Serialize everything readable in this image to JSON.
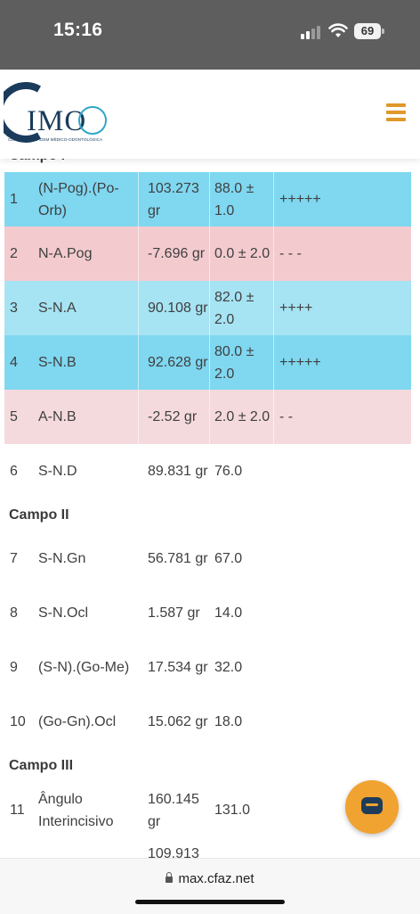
{
  "status_bar": {
    "time": "15:16",
    "battery": "69"
  },
  "brand": {
    "logo_text": "IMO",
    "tagline": "CLÍNICA DE IMAGEM MÉDICO-ODONTOLÓGICA",
    "accent": "#e0982a",
    "logo_color": "#1a3b5c"
  },
  "sections": {
    "campo_i": "Campo I",
    "campo_ii": "Campo II",
    "campo_iii": "Campo III"
  },
  "rows": [
    {
      "num": "1",
      "name": "(N-Pog).(Po-Orb)",
      "value": "103.273 gr",
      "norm": "88.0 ± 1.0",
      "dev": "+++++"
    },
    {
      "num": "2",
      "name": "N-A.Pog",
      "value": "-7.696 gr",
      "norm": "0.0 ± 2.0",
      "dev": "- - -"
    },
    {
      "num": "3",
      "name": "S-N.A",
      "value": "90.108 gr",
      "norm": "82.0 ± 2.0",
      "dev": "++++"
    },
    {
      "num": "4",
      "name": "S-N.B",
      "value": "92.628 gr",
      "norm": "80.0 ± 2.0",
      "dev": "+++++"
    },
    {
      "num": "5",
      "name": "A-N.B",
      "value": "-2.52 gr",
      "norm": "2.0 ± 2.0",
      "dev": "- -"
    },
    {
      "num": "6",
      "name": "S-N.D",
      "value": "89.831 gr",
      "norm": "76.0",
      "dev": ""
    },
    {
      "num": "7",
      "name": "S-N.Gn",
      "value": "56.781 gr",
      "norm": "67.0",
      "dev": ""
    },
    {
      "num": "8",
      "name": "S-N.Ocl",
      "value": "1.587 gr",
      "norm": "14.0",
      "dev": ""
    },
    {
      "num": "9",
      "name": "(S-N).(Go-Me)",
      "value": "17.534 gr",
      "norm": "32.0",
      "dev": ""
    },
    {
      "num": "10",
      "name": "(Go-Gn).Ocl",
      "value": "15.062 gr",
      "norm": "18.0",
      "dev": ""
    },
    {
      "num": "11",
      "name": "Ângulo Interincisivo",
      "value": "160.145 gr",
      "norm": "131.0",
      "dev": ""
    },
    {
      "num": "",
      "name": "",
      "value": "109.913",
      "norm": "",
      "dev": ""
    }
  ],
  "browser": {
    "url": "max.cfaz.net"
  }
}
